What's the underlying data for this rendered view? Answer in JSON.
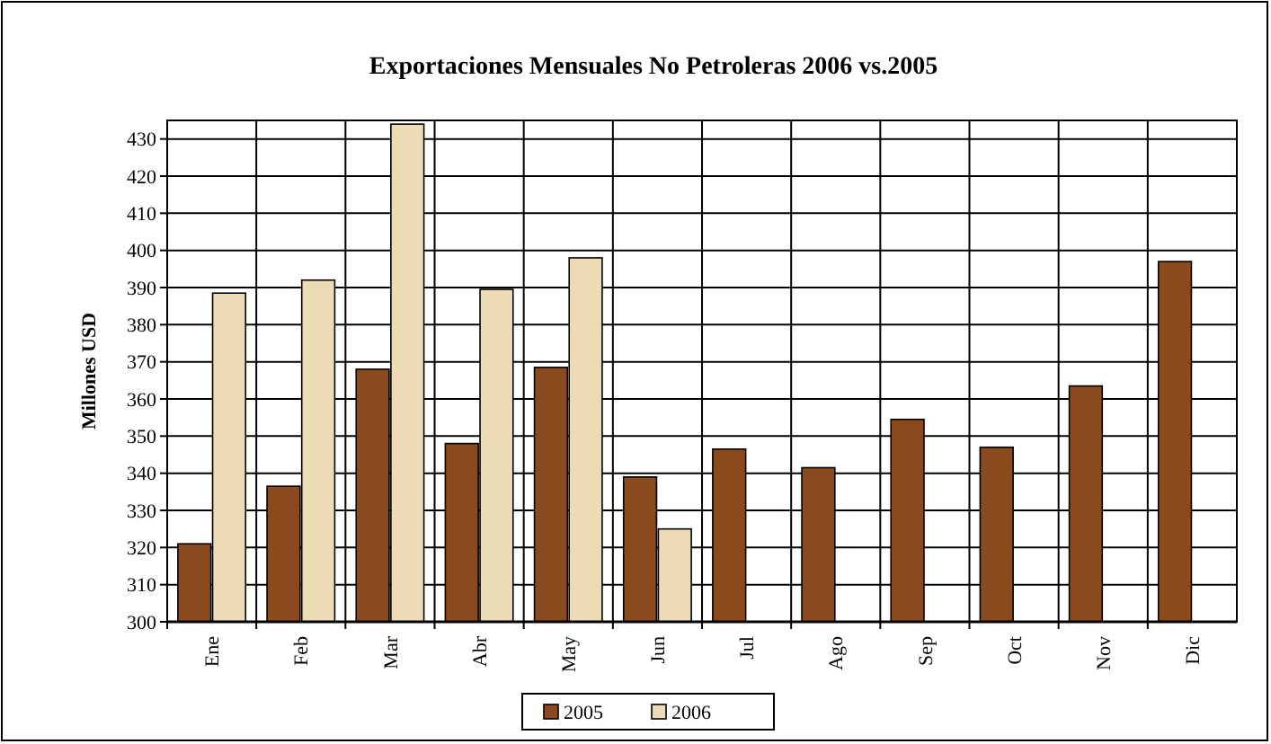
{
  "chart_data": {
    "type": "bar",
    "title": "Exportaciones Mensuales No Petroleras 2006 vs.2005",
    "ylabel": "Millones USD",
    "categories": [
      "Ene",
      "Feb",
      "Mar",
      "Abr",
      "May",
      "Jun",
      "Jul",
      "Ago",
      "Sep",
      "Oct",
      "Nov",
      "Dic"
    ],
    "series": [
      {
        "name": "2005",
        "color": "#8b4a1e",
        "values": [
          321,
          336.5,
          368,
          348,
          368.5,
          339,
          346.5,
          341.5,
          354.5,
          347,
          363.5,
          397
        ]
      },
      {
        "name": "2006",
        "color": "#ecdcb6",
        "values": [
          388.5,
          392,
          434,
          389.5,
          398,
          325,
          null,
          null,
          null,
          null,
          null,
          null
        ]
      }
    ],
    "ylim": [
      300,
      435
    ],
    "yticks": [
      300,
      310,
      320,
      330,
      340,
      350,
      360,
      370,
      380,
      390,
      400,
      410,
      420,
      430
    ],
    "grid": true,
    "legend": "bottom"
  }
}
